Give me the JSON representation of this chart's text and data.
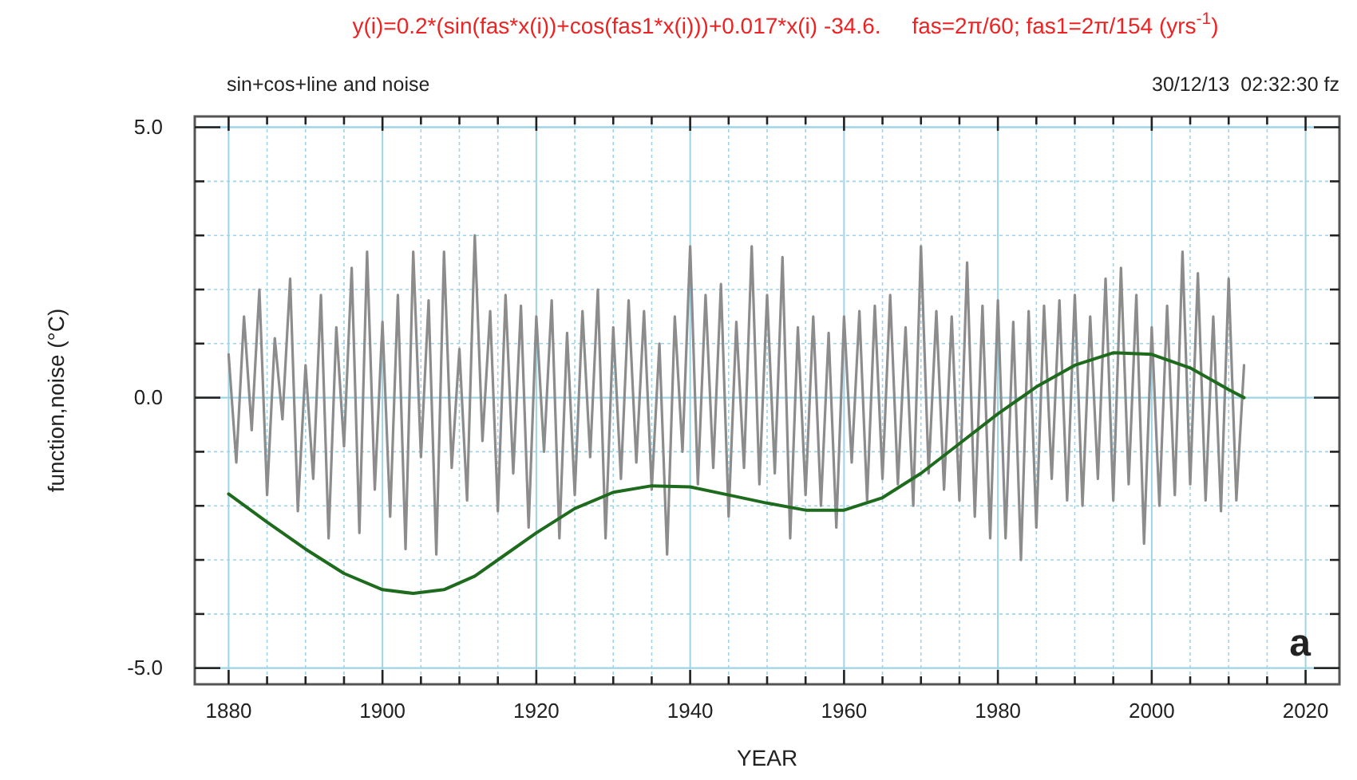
{
  "chart_data": {
    "type": "line",
    "title": "y(i)=0.2*(sin(fas*x(i))+cos(fas1*x(i)))+0.017*x(i) -34.6.     fas=2π/60; fas1=2π/154 (yrs$^{-1}$)",
    "subtitle": "sin+cos+line and noise",
    "annotations": [
      "30/12/13  02:32:30 fz",
      "a"
    ],
    "xlabel": "YEAR",
    "ylabel": "function,noise (°C)",
    "xlim": [
      1875.6,
      2024.4
    ],
    "ylim": [
      -5.3,
      5.2
    ],
    "xticks": [
      1880,
      {
        "value": 1885,
        "label": null
      },
      {
        "value": 1890,
        "label": null
      },
      {
        "value": 1895,
        "label": null
      },
      1900,
      {
        "value": 1905,
        "label": null
      },
      {
        "value": 1910,
        "label": null
      },
      {
        "value": 1915,
        "label": null
      },
      1920,
      {
        "value": 1925,
        "label": null
      },
      {
        "value": 1930,
        "label": null
      },
      {
        "value": 1935,
        "label": null
      },
      1940,
      {
        "value": 1945,
        "label": null
      },
      {
        "value": 1950,
        "label": null
      },
      {
        "value": 1955,
        "label": null
      },
      1960,
      {
        "value": 1965,
        "label": null
      },
      {
        "value": 1970,
        "label": null
      },
      {
        "value": 1975,
        "label": null
      },
      1980,
      {
        "value": 1985,
        "label": null
      },
      {
        "value": 1990,
        "label": null
      },
      {
        "value": 1995,
        "label": null
      },
      2000,
      {
        "value": 2005,
        "label": null
      },
      {
        "value": 2010,
        "label": null
      },
      {
        "value": 2015,
        "label": null
      },
      2020
    ],
    "yticks": [
      {
        "value": -5,
        "label": "-5.0"
      },
      {
        "value": -4,
        "label": null
      },
      {
        "value": -3,
        "label": null
      },
      {
        "value": -2,
        "label": null
      },
      {
        "value": -1,
        "label": null
      },
      {
        "value": 0,
        "label": "0.0"
      },
      {
        "value": 1,
        "label": null
      },
      {
        "value": 2,
        "label": null
      },
      {
        "value": 3,
        "label": null
      },
      {
        "value": 4,
        "label": null
      },
      {
        "value": 5,
        "label": "5.0"
      }
    ],
    "grid": true,
    "marker": "none",
    "line_style": "solid",
    "series": [
      {
        "color": "#8c8c8c",
        "x": [
          1880,
          1881,
          1882,
          1883,
          1884,
          1885,
          1886,
          1887,
          1888,
          1889,
          1890,
          1891,
          1892,
          1893,
          1894,
          1895,
          1896,
          1897,
          1898,
          1899,
          1900,
          1901,
          1902,
          1903,
          1904,
          1905,
          1906,
          1907,
          1908,
          1909,
          1910,
          1911,
          1912,
          1913,
          1914,
          1915,
          1916,
          1917,
          1918,
          1919,
          1920,
          1921,
          1922,
          1923,
          1924,
          1925,
          1926,
          1927,
          1928,
          1929,
          1930,
          1931,
          1932,
          1933,
          1934,
          1935,
          1936,
          1937,
          1938,
          1939,
          1940,
          1941,
          1942,
          1943,
          1944,
          1945,
          1946,
          1947,
          1948,
          1949,
          1950,
          1951,
          1952,
          1953,
          1954,
          1955,
          1956,
          1957,
          1958,
          1959,
          1960,
          1961,
          1962,
          1963,
          1964,
          1965,
          1966,
          1967,
          1968,
          1969,
          1970,
          1971,
          1972,
          1973,
          1974,
          1975,
          1976,
          1977,
          1978,
          1979,
          1980,
          1981,
          1982,
          1983,
          1984,
          1985,
          1986,
          1987,
          1988,
          1989,
          1990,
          1991,
          1992,
          1993,
          1994,
          1995,
          1996,
          1997,
          1998,
          1999,
          2000,
          2001,
          2002,
          2003,
          2004,
          2005,
          2006,
          2007,
          2008,
          2009,
          2010,
          2011,
          2012
        ],
        "values": [
          0.8,
          -1.2,
          1.5,
          -0.6,
          2.0,
          -1.8,
          1.1,
          -0.4,
          2.2,
          -2.1,
          0.6,
          -1.5,
          1.9,
          -2.6,
          1.3,
          -0.9,
          2.4,
          -2.5,
          2.7,
          -1.7,
          1.4,
          -2.2,
          1.9,
          -2.8,
          2.7,
          -1.1,
          1.8,
          -2.9,
          2.7,
          -1.3,
          0.9,
          -1.9,
          3.0,
          -0.8,
          1.6,
          -2.1,
          1.9,
          -1.4,
          1.7,
          -2.4,
          1.5,
          -1.0,
          1.8,
          -2.6,
          1.2,
          -1.8,
          1.6,
          -1.1,
          2.0,
          -2.6,
          1.3,
          -1.5,
          1.8,
          -1.2,
          1.6,
          -1.7,
          1.0,
          -2.9,
          1.5,
          -1.0,
          2.8,
          -1.6,
          1.9,
          -1.3,
          2.1,
          -2.2,
          1.4,
          -1.3,
          2.8,
          -1.6,
          1.9,
          -1.4,
          2.6,
          -2.6,
          1.3,
          -1.8,
          1.5,
          -2.0,
          1.2,
          -2.4,
          1.5,
          -1.2,
          1.6,
          -1.9,
          1.7,
          -1.5,
          1.9,
          -1.6,
          1.3,
          -2.0,
          2.8,
          -1.4,
          1.6,
          -1.7,
          1.5,
          -1.9,
          2.5,
          -2.2,
          1.7,
          -2.6,
          1.8,
          -2.6,
          1.4,
          -3.0,
          1.6,
          -2.4,
          1.7,
          -1.5,
          1.8,
          -1.9,
          1.9,
          -2.0,
          1.5,
          -1.5,
          2.2,
          -1.9,
          2.4,
          -1.6,
          1.9,
          -2.7,
          1.3,
          -2.0,
          1.7,
          -1.8,
          2.7,
          -1.6,
          2.3,
          -1.9,
          1.5,
          -2.1,
          2.2,
          -1.9,
          0.6
        ]
      },
      {
        "color": "#1e6b1e",
        "x": [
          1880,
          1885,
          1890,
          1895,
          1900,
          1904,
          1908,
          1912,
          1916,
          1920,
          1925,
          1930,
          1935,
          1940,
          1945,
          1950,
          1955,
          1960,
          1965,
          1970,
          1975,
          1980,
          1985,
          1990,
          1995,
          2000,
          2005,
          2010,
          2012
        ],
        "values": [
          -1.78,
          -2.3,
          -2.8,
          -3.25,
          -3.55,
          -3.62,
          -3.55,
          -3.3,
          -2.9,
          -2.5,
          -2.05,
          -1.75,
          -1.63,
          -1.65,
          -1.8,
          -1.95,
          -2.08,
          -2.08,
          -1.85,
          -1.4,
          -0.85,
          -0.3,
          0.2,
          0.6,
          0.83,
          0.8,
          0.55,
          0.15,
          0.0
        ]
      }
    ]
  }
}
